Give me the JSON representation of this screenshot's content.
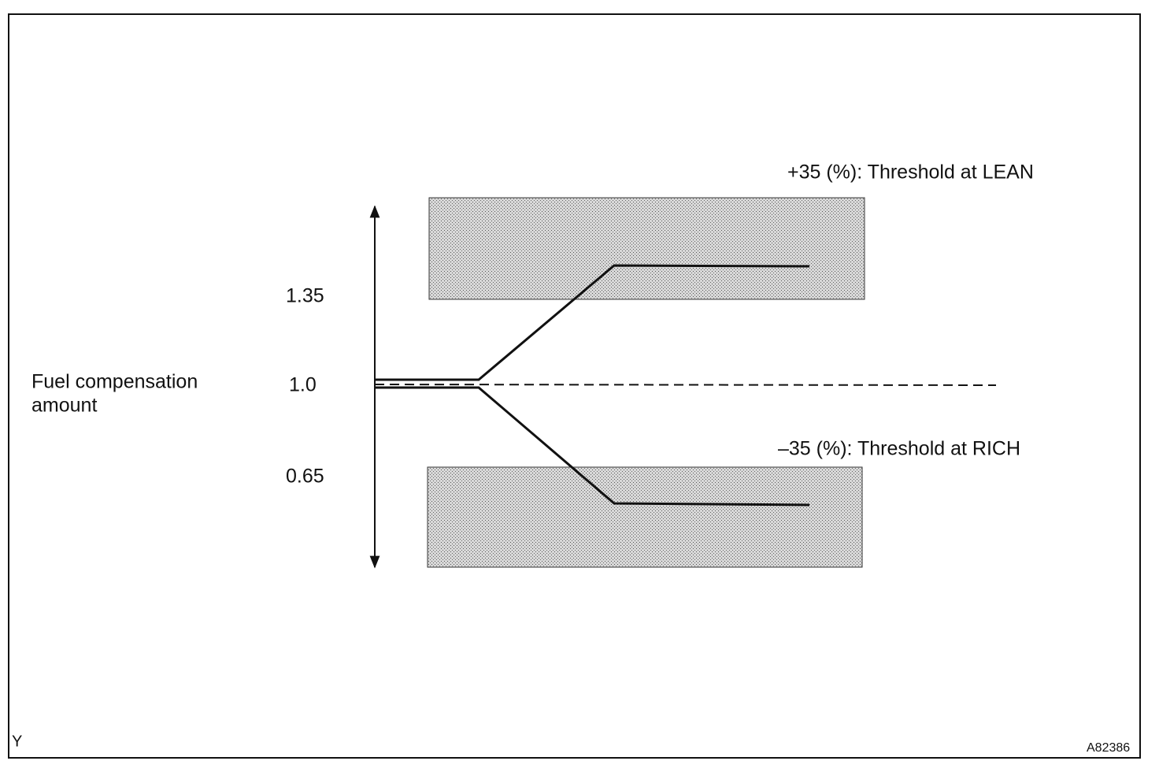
{
  "diagram": {
    "upper_threshold": "+35 (%): Threshold at LEAN",
    "lower_threshold": "–35 (%): Threshold at RICH",
    "y_axis_title": [
      "Fuel compensation",
      "amount"
    ],
    "levels": [
      "1.35",
      "1.0",
      "0.65"
    ],
    "corner_label": "Y",
    "figure_id": "A82386"
  }
}
